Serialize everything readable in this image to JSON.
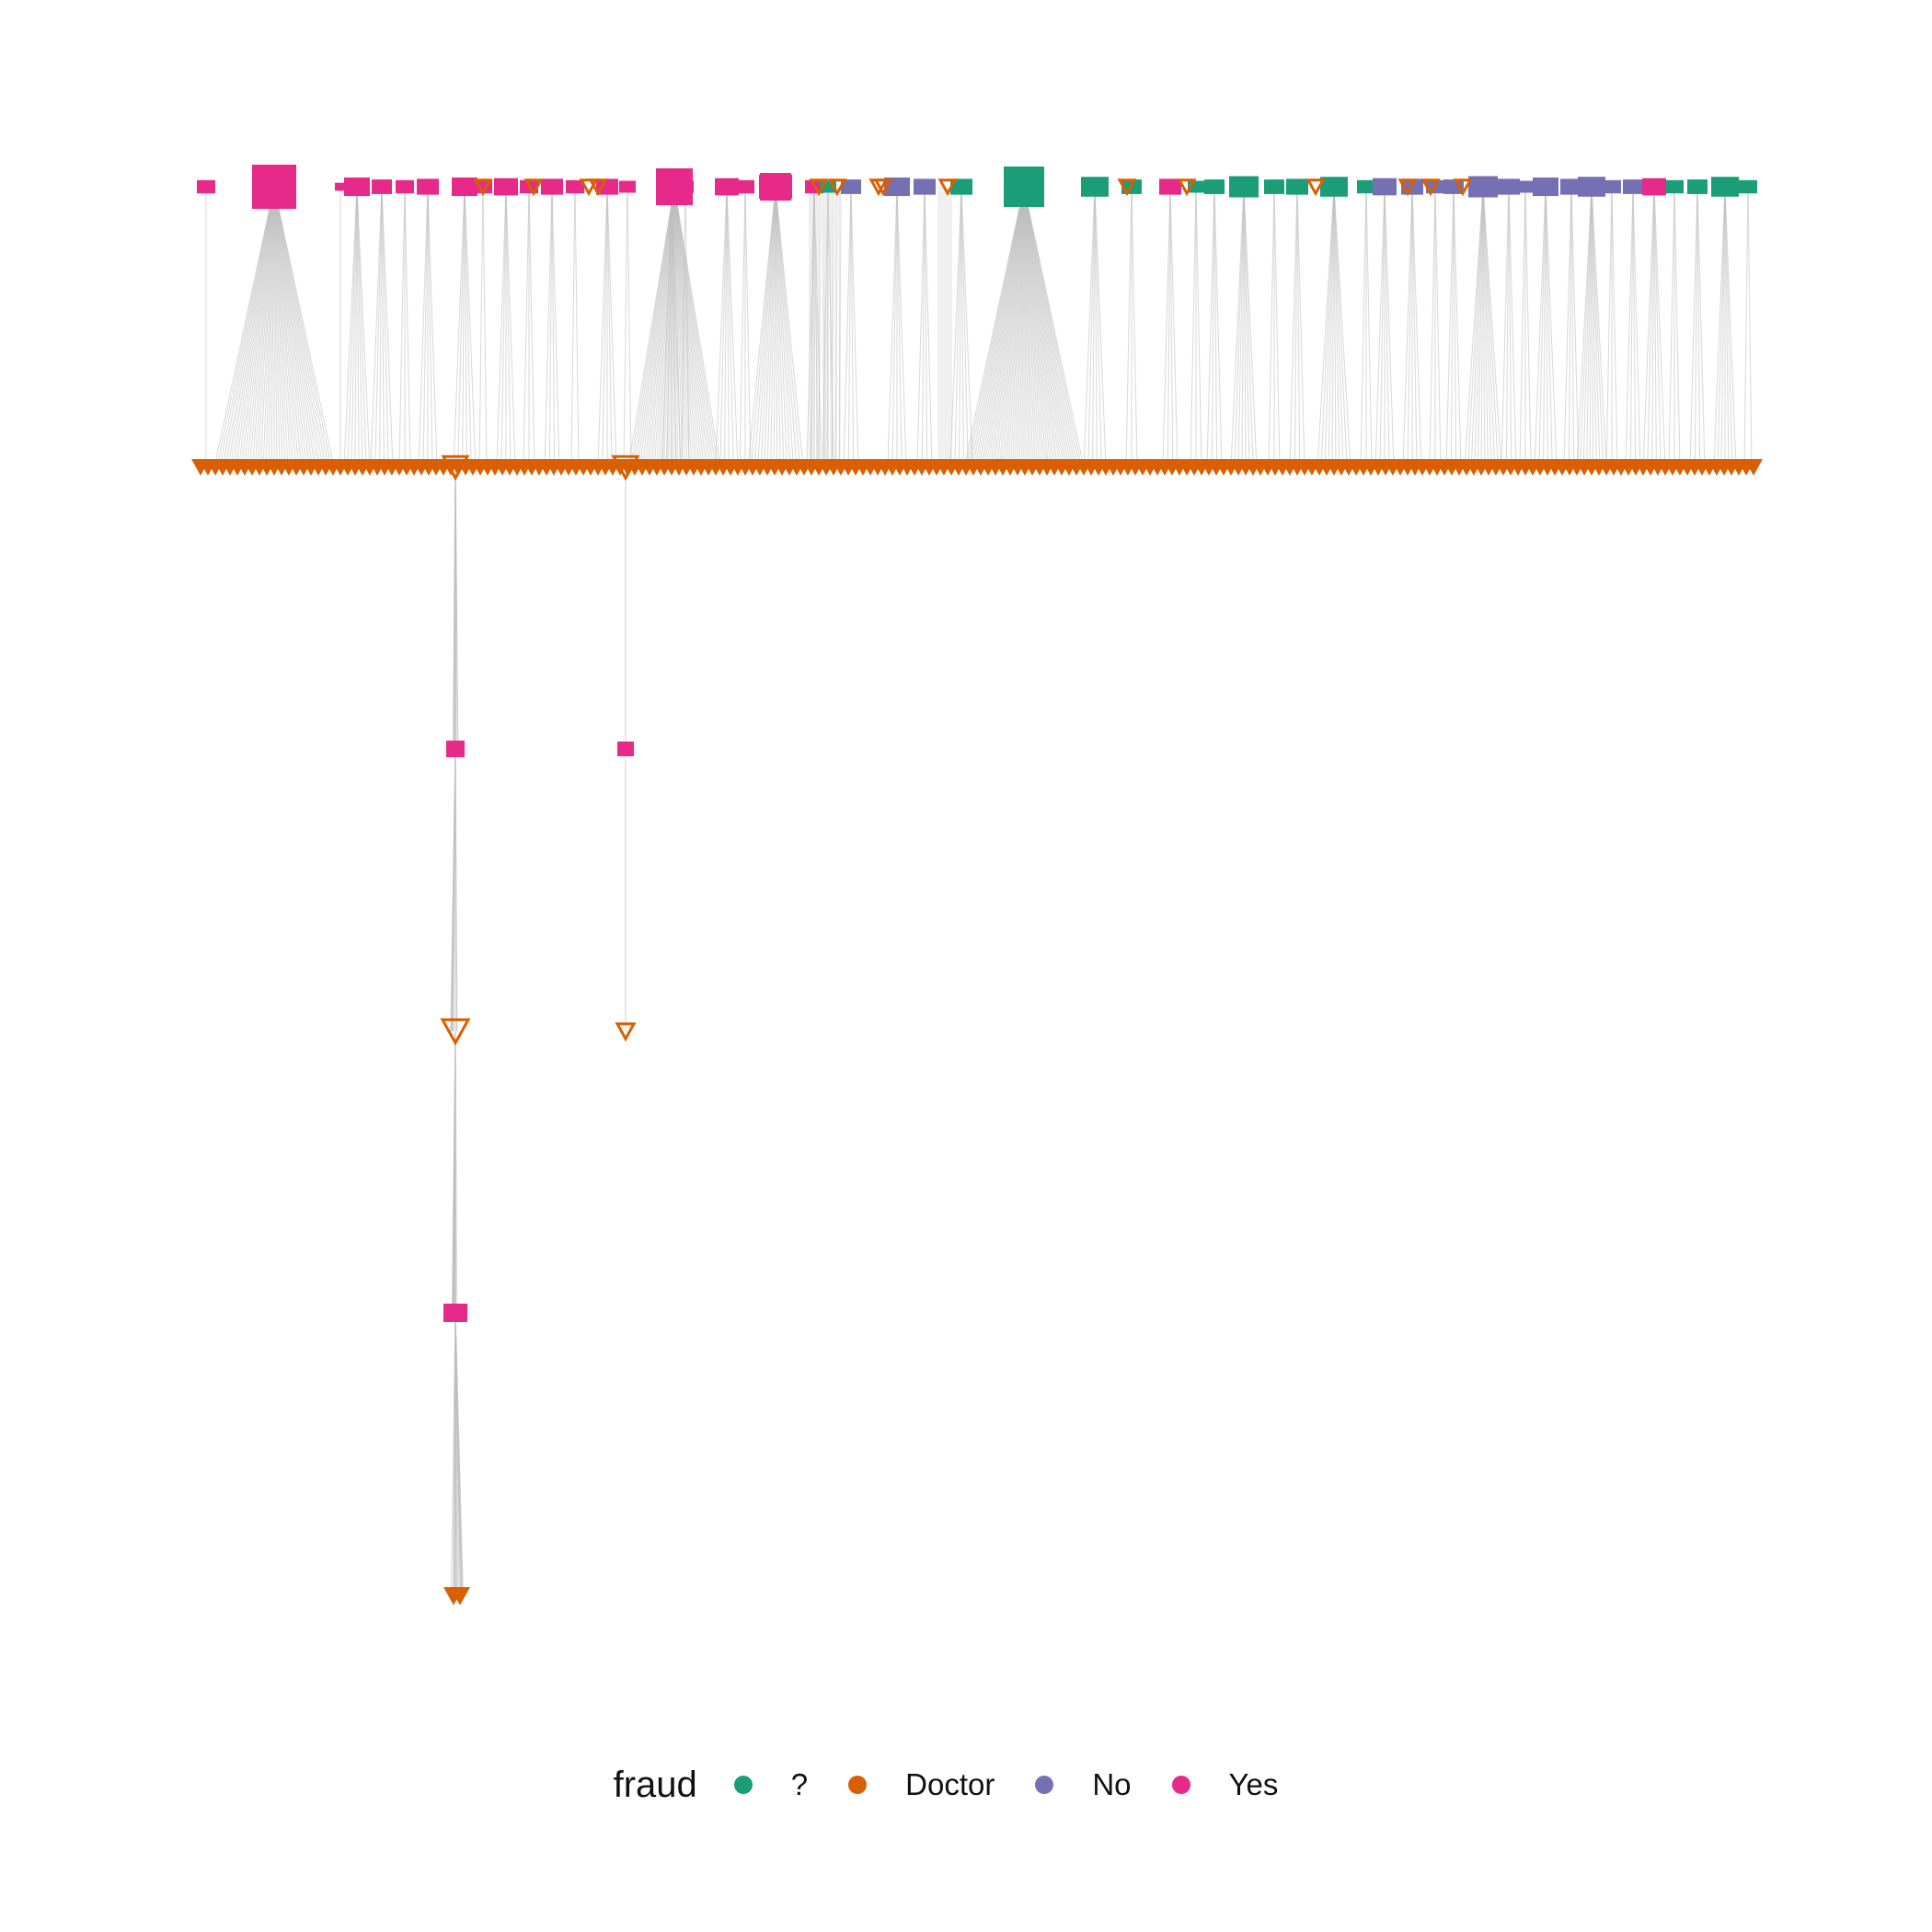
{
  "legend": {
    "title": "fraud",
    "items": [
      {
        "key": "unknown",
        "label": "?",
        "color": "#1b9e77"
      },
      {
        "key": "doctor",
        "label": "Doctor",
        "color": "#d95f02"
      },
      {
        "key": "no",
        "label": "No",
        "color": "#7570b3"
      },
      {
        "key": "yes",
        "label": "Yes",
        "color": "#e7298a"
      }
    ]
  },
  "chart_data": {
    "type": "network",
    "layout": "layered-tree",
    "node_shapes": {
      "patient": "square",
      "doctor": "triangle-down"
    },
    "edge_color": "#bdbdbd",
    "grid": false,
    "legend_position": "bottom"
  }
}
